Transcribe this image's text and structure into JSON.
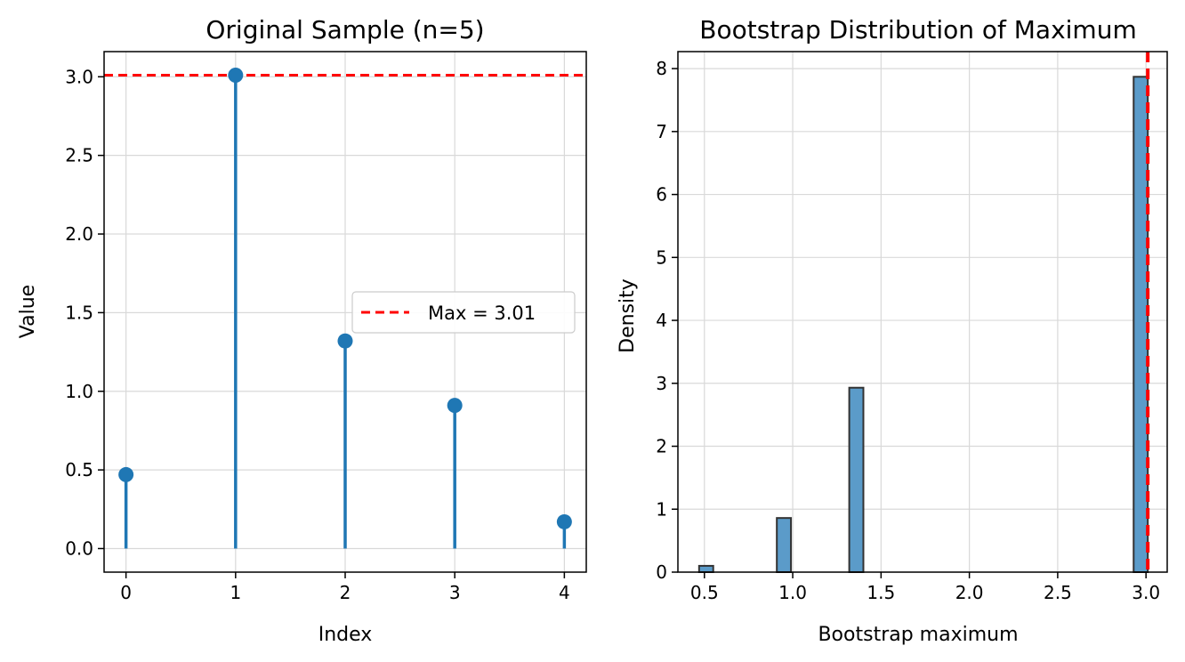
{
  "chart_data": [
    {
      "type": "stem",
      "title": "Original Sample (n=5)",
      "xlabel": "Index",
      "ylabel": "Value",
      "x": [
        0,
        1,
        2,
        3,
        4
      ],
      "y": [
        0.47,
        3.01,
        1.32,
        0.91,
        0.17
      ],
      "xlim": [
        -0.2,
        4.2
      ],
      "ylim": [
        -0.15,
        3.16
      ],
      "xticks": [
        "0",
        "1",
        "2",
        "3",
        "4"
      ],
      "yticks": [
        "0.0",
        "0.5",
        "1.0",
        "1.5",
        "2.0",
        "2.5",
        "3.0"
      ],
      "grid": true,
      "reference_line": {
        "orientation": "horizontal",
        "value": 3.01,
        "label": "Max = 3.01",
        "style": "dashed",
        "color": "#ff0000"
      },
      "legend": {
        "position": "center-right",
        "entries": [
          "Max = 3.01"
        ]
      },
      "series_color": "#1f77b4"
    },
    {
      "type": "histogram",
      "title": "Bootstrap Distribution of Maximum",
      "xlabel": "Bootstrap maximum",
      "ylabel": "Density",
      "bins": [
        {
          "x0": 0.47,
          "x1": 0.55,
          "density": 0.1
        },
        {
          "x0": 0.91,
          "x1": 0.99,
          "density": 0.86
        },
        {
          "x0": 1.32,
          "x1": 1.4,
          "density": 2.93
        },
        {
          "x0": 2.93,
          "x1": 3.01,
          "density": 7.87
        }
      ],
      "xlim": [
        0.35,
        3.12
      ],
      "ylim": [
        0,
        8.27
      ],
      "xticks": [
        "0.5",
        "1.0",
        "1.5",
        "2.0",
        "2.5",
        "3.0"
      ],
      "yticks": [
        "0",
        "1",
        "2",
        "3",
        "4",
        "5",
        "6",
        "7",
        "8"
      ],
      "grid": true,
      "reference_line": {
        "orientation": "vertical",
        "value": 3.01,
        "style": "dashed",
        "color": "#ff0000"
      },
      "bar_color": "#5b9bc9",
      "bar_edge_color": "#333333"
    }
  ]
}
